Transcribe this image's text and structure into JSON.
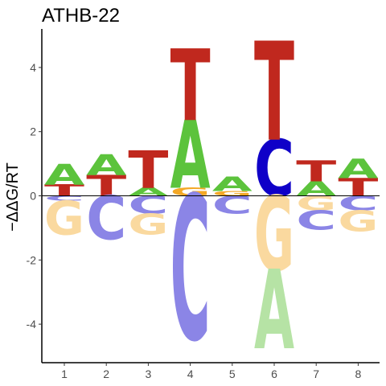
{
  "chart_data": {
    "type": "sequence-logo",
    "title": "ATHB-22",
    "xlabel": "",
    "ylabel": "−ΔΔG/RT",
    "positions": [
      "1",
      "2",
      "3",
      "4",
      "5",
      "6",
      "7",
      "8"
    ],
    "ylim": [
      -5.2,
      5.2
    ],
    "y_ticks": [
      -4,
      -2,
      0,
      2,
      4
    ],
    "y_tick_labels": [
      "-4",
      "-2",
      "0",
      "2",
      "4"
    ],
    "zero_line": true,
    "grid": false,
    "colors": {
      "A": "#5cc33c",
      "C": "#0f00c8",
      "G": "#f4a826",
      "T": "#c0281e",
      "A_neg": "#b6e3a5",
      "C_neg": "#8b85e6",
      "G_neg": "#fad99f",
      "T_neg": "#e2a39e"
    },
    "stacks": [
      {
        "position": "1",
        "positive": [
          {
            "letter": "T",
            "value": 0.35
          },
          {
            "letter": "A",
            "value": 0.65
          }
        ],
        "negative": [
          {
            "letter": "C",
            "value": -0.15
          },
          {
            "letter": "G",
            "value": -1.05
          }
        ]
      },
      {
        "position": "2",
        "positive": [
          {
            "letter": "T",
            "value": 0.65
          },
          {
            "letter": "A",
            "value": 0.65
          }
        ],
        "negative": [
          {
            "letter": "C",
            "value": -1.35
          }
        ]
      },
      {
        "position": "3",
        "positive": [
          {
            "letter": "A",
            "value": 0.25
          },
          {
            "letter": "T",
            "value": 1.15
          }
        ],
        "negative": [
          {
            "letter": "C",
            "value": -0.55
          },
          {
            "letter": "G",
            "value": -0.65
          }
        ]
      },
      {
        "position": "4",
        "positive": [
          {
            "letter": "G",
            "value": 0.25
          },
          {
            "letter": "A",
            "value": 2.1
          },
          {
            "letter": "T",
            "value": 2.2
          }
        ],
        "negative": [
          {
            "letter": "C",
            "value": -4.45
          }
        ]
      },
      {
        "position": "5",
        "positive": [
          {
            "letter": "G",
            "value": 0.15
          },
          {
            "letter": "A",
            "value": 0.45
          }
        ],
        "negative": [
          {
            "letter": "C",
            "value": -0.55
          }
        ]
      },
      {
        "position": "6",
        "positive": [
          {
            "letter": "C",
            "value": 1.75
          },
          {
            "letter": "T",
            "value": 3.05
          }
        ],
        "negative": [
          {
            "letter": "G",
            "value": -2.3
          },
          {
            "letter": "A",
            "value": -2.45
          }
        ]
      },
      {
        "position": "7",
        "positive": [
          {
            "letter": "A",
            "value": 0.45
          },
          {
            "letter": "T",
            "value": 0.65
          }
        ],
        "negative": [
          {
            "letter": "G",
            "value": -0.45
          },
          {
            "letter": "C",
            "value": -0.6
          }
        ]
      },
      {
        "position": "8",
        "positive": [
          {
            "letter": "T",
            "value": 0.55
          },
          {
            "letter": "A",
            "value": 0.6
          }
        ],
        "negative": [
          {
            "letter": "C",
            "value": -0.45
          },
          {
            "letter": "G",
            "value": -0.65
          }
        ]
      }
    ]
  }
}
